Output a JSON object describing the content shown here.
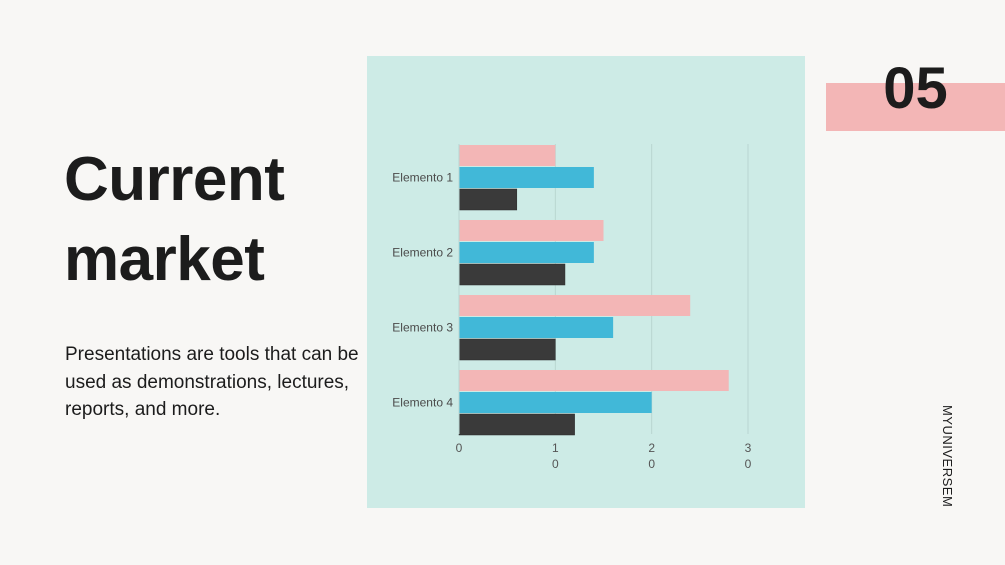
{
  "slide": {
    "title_line1": "Current",
    "title_line2": "market",
    "description": "Presentations are tools that can be used as demonstrations, lectures, reports, and more.",
    "page_number": "05",
    "brand": "MYUNIVERSEM"
  },
  "colors": {
    "panel": "#cdebe6",
    "pink": "#f3b6b6",
    "blue": "#41b8d8",
    "dark": "#3a3a3a"
  },
  "chart_data": {
    "type": "bar",
    "orientation": "horizontal",
    "categories": [
      "Elemento 1",
      "Elemento 2",
      "Elemento 3",
      "Elemento 4"
    ],
    "series": [
      {
        "values": [
          10,
          15,
          24,
          28
        ]
      },
      {
        "values": [
          14,
          14,
          16,
          20
        ]
      },
      {
        "values": [
          6,
          11,
          10,
          12
        ]
      }
    ],
    "xlim": [
      0,
      30
    ],
    "x_ticks": [
      {
        "top": "0",
        "bottom": ""
      },
      {
        "top": "1",
        "bottom": "0"
      },
      {
        "top": "2",
        "bottom": "0"
      },
      {
        "top": "3",
        "bottom": "0"
      }
    ],
    "grid": true,
    "legend": "none"
  }
}
